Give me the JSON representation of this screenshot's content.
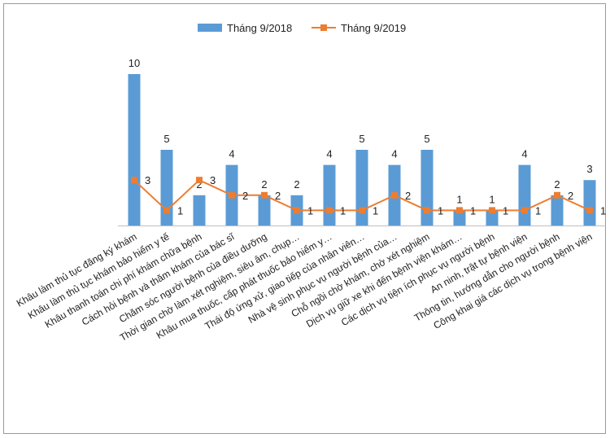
{
  "chart_data": {
    "type": "bar",
    "categories": [
      "Khâu làm thủ tục đăng ký khám",
      "Khâu làm thủ tục khám bảo hiểm y tế",
      "Khâu thanh toán chi phí khám chữa bệnh",
      "Cách hỏi bệnh và thăm khám của bác sĩ",
      "Chăm sóc người bệnh của điều dưỡng",
      "Thời gian chờ làm xét nghiệm, siêu âm, chụp…",
      "Khâu mua thuốc, cấp phát thuốc bảo hiểm y…",
      "Thái độ ứng xử, giao tiếp của nhân viên…",
      "Nhà vệ sinh phục vụ người bệnh của…",
      "Chỗ ngồi chờ khám, chờ xét nghiệm",
      "Dịch vụ giữ xe khi đến bệnh viện khám…",
      "Các dịch vụ tiện ích phục vụ người bệnh",
      "An ninh, trật tự bệnh viện",
      "Thông tin, hướng dẫn cho người bệnh",
      "Công khai giá các dịch vụ trong bệnh viện"
    ],
    "series": [
      {
        "name": "Tháng 9/2018",
        "type": "bar",
        "color": "#5b9bd5",
        "values": [
          10,
          5,
          2,
          4,
          2,
          2,
          4,
          5,
          4,
          5,
          1,
          1,
          4,
          2,
          3
        ]
      },
      {
        "name": "Tháng 9/2019",
        "type": "line",
        "color": "#ed7d31",
        "values": [
          3,
          1,
          3,
          2,
          2,
          1,
          1,
          1,
          2,
          1,
          1,
          1,
          1,
          2,
          1
        ]
      }
    ],
    "ylim": [
      0,
      10
    ],
    "grid": false,
    "legend_position": "top"
  }
}
